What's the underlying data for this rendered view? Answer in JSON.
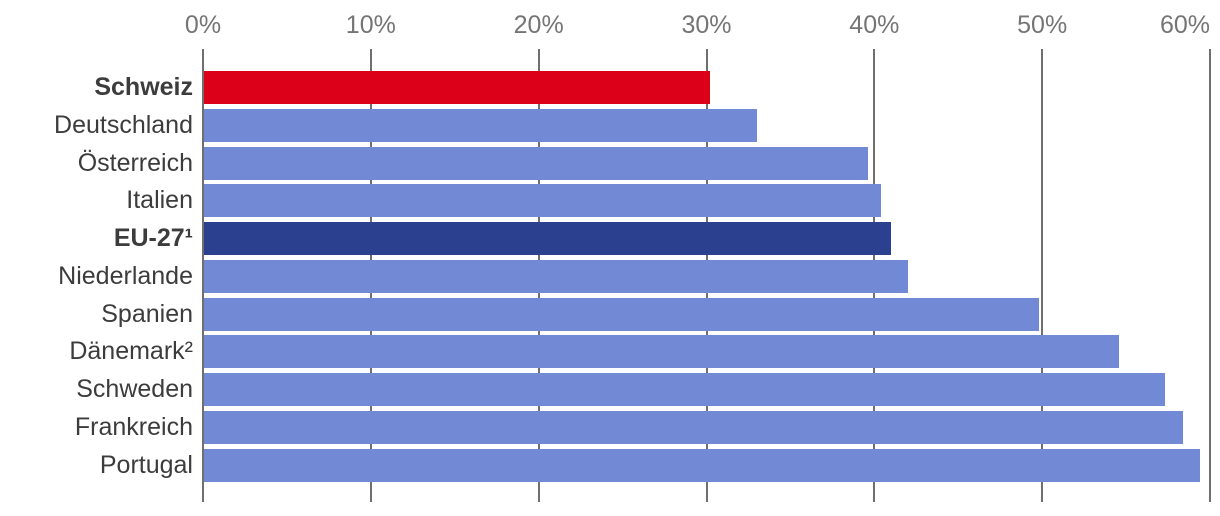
{
  "chart_data": {
    "type": "bar",
    "orientation": "horizontal",
    "title": "",
    "x_axis": {
      "position": "top",
      "ticks": [
        "0%",
        "10%",
        "20%",
        "30%",
        "40%",
        "50%",
        "60%"
      ],
      "tick_values": [
        0,
        10,
        20,
        30,
        40,
        50,
        60
      ],
      "min": 0,
      "max": 60,
      "grid": true
    },
    "rows": [
      {
        "label": "Schweiz",
        "value": 30.2,
        "bold": true,
        "highlight": "schweiz"
      },
      {
        "label": "Deutschland",
        "value": 33.0,
        "bold": false,
        "highlight": null
      },
      {
        "label": "Österreich",
        "value": 39.6,
        "bold": false,
        "highlight": null
      },
      {
        "label": "Italien",
        "value": 40.4,
        "bold": false,
        "highlight": null
      },
      {
        "label": "EU-27¹",
        "value": 41.0,
        "bold": true,
        "highlight": "eu"
      },
      {
        "label": "Niederlande",
        "value": 42.0,
        "bold": false,
        "highlight": null
      },
      {
        "label": "Spanien",
        "value": 49.8,
        "bold": false,
        "highlight": null
      },
      {
        "label": "Dänemark²",
        "value": 54.6,
        "bold": false,
        "highlight": null
      },
      {
        "label": "Schweden",
        "value": 57.3,
        "bold": false,
        "highlight": null
      },
      {
        "label": "Frankreich",
        "value": 58.4,
        "bold": false,
        "highlight": null
      },
      {
        "label": "Portugal",
        "value": 59.4,
        "bold": false,
        "highlight": null
      }
    ],
    "legend": false
  },
  "colors": {
    "bar_default": "#7289D6",
    "bar_schweiz": "#DC0018",
    "bar_eu": "#2B4190",
    "grid": "#6F6F6F",
    "axis_tick_label": "#757575",
    "category_label": "#3C3C3C",
    "background": "#FFFFFF"
  }
}
